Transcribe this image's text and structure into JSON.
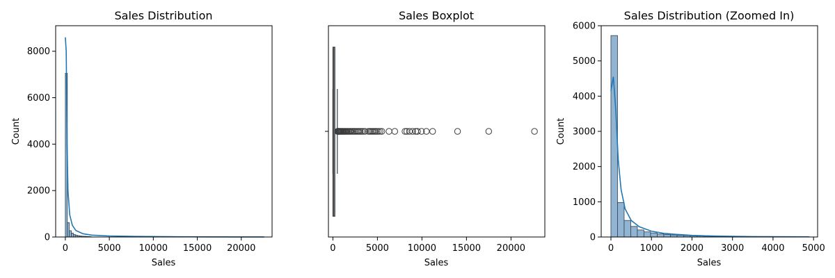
{
  "colors": {
    "bar_fill": "#92b4d3",
    "bar_edge": "#2f3f4f",
    "kde_line": "#1f77b4",
    "box_line": "#3d3d3d"
  },
  "chart_data": [
    {
      "type": "histogram",
      "title": "Sales Distribution",
      "xlabel": "Sales",
      "ylabel": "Count",
      "xlim": [
        -1100,
        23500
      ],
      "ylim": [
        0,
        9100
      ],
      "xticks": [
        0,
        5000,
        10000,
        15000,
        20000
      ],
      "xtick_labels": [
        "0",
        "5000",
        "10000",
        "15000",
        "20000"
      ],
      "yticks": [
        0,
        2000,
        4000,
        6000,
        8000
      ],
      "ytick_labels": [
        "0",
        "2000",
        "4000",
        "6000",
        "8000"
      ],
      "bin_width": 227,
      "bin_starts": [
        0,
        227,
        454,
        681,
        908,
        1135,
        1362,
        1589,
        1816,
        2043,
        2270,
        2497,
        2724
      ],
      "counts": [
        7050,
        620,
        270,
        170,
        110,
        80,
        60,
        45,
        35,
        30,
        25,
        20,
        15
      ],
      "kde": {
        "x": [
          0,
          100,
          200,
          300,
          500,
          800,
          1200,
          2000,
          3000,
          5000,
          8000,
          12000,
          16000,
          20000,
          22600
        ],
        "y": [
          8600,
          8000,
          4000,
          2000,
          950,
          500,
          280,
          140,
          80,
          45,
          25,
          12,
          6,
          3,
          2
        ]
      }
    },
    {
      "type": "boxplot",
      "title": "Sales Boxplot",
      "xlabel": "Sales",
      "xlim": [
        -500,
        23800
      ],
      "xticks": [
        0,
        5000,
        10000,
        15000,
        20000
      ],
      "xtick_labels": [
        "0",
        "5000",
        "10000",
        "15000",
        "20000"
      ],
      "stats": {
        "whisker_low": 0.4,
        "q1": 17,
        "median": 54,
        "q3": 210,
        "whisker_high": 498
      },
      "outliers": [
        520,
        560,
        600,
        650,
        700,
        760,
        820,
        890,
        960,
        1040,
        1120,
        1200,
        1290,
        1380,
        1480,
        1580,
        1690,
        1800,
        1920,
        2040,
        2170,
        2300,
        2440,
        2590,
        2750,
        2900,
        3060,
        3230,
        3400,
        3600,
        4000,
        4150,
        4300,
        4450,
        4600,
        4750,
        4900,
        5100,
        5300,
        5500,
        6300,
        6950,
        8100,
        8300,
        8600,
        8950,
        9300,
        9500,
        9950,
        10500,
        11200,
        13999,
        17500,
        22638
      ]
    },
    {
      "type": "histogram",
      "title": "Sales Distribution (Zoomed In)",
      "xlabel": "Sales",
      "ylabel": "Count",
      "xlim": [
        -240,
        5100
      ],
      "ylim": [
        0,
        6000
      ],
      "xticks": [
        0,
        1000,
        2000,
        3000,
        4000,
        5000
      ],
      "xtick_labels": [
        "0",
        "1000",
        "2000",
        "3000",
        "4000",
        "5000"
      ],
      "yticks": [
        0,
        1000,
        2000,
        3000,
        4000,
        5000,
        6000
      ],
      "ytick_labels": [
        "0",
        "1000",
        "2000",
        "3000",
        "4000",
        "5000",
        "6000"
      ],
      "bin_width": 163,
      "bin_starts": [
        0,
        163,
        326,
        489,
        652,
        815,
        978,
        1141,
        1304,
        1467,
        1630,
        1793,
        1956,
        2119,
        2282,
        2445,
        2608,
        2771,
        2934,
        3097,
        3260,
        3423,
        3586,
        3749,
        3912,
        4075,
        4238,
        4401,
        4564,
        4727
      ],
      "counts": [
        5720,
        980,
        470,
        300,
        200,
        145,
        115,
        85,
        70,
        58,
        48,
        40,
        33,
        27,
        22,
        18,
        15,
        13,
        11,
        10,
        9,
        8,
        7,
        6,
        6,
        5,
        5,
        4,
        4,
        4
      ],
      "kde": {
        "x": [
          0,
          60,
          120,
          180,
          250,
          350,
          500,
          700,
          1000,
          1300,
          1600,
          2000,
          2500,
          3000,
          3500,
          4000,
          4500,
          4900
        ],
        "y": [
          4150,
          4550,
          3600,
          2200,
          1350,
          800,
          470,
          290,
          165,
          105,
          75,
          45,
          28,
          18,
          12,
          8,
          6,
          5
        ]
      }
    }
  ]
}
